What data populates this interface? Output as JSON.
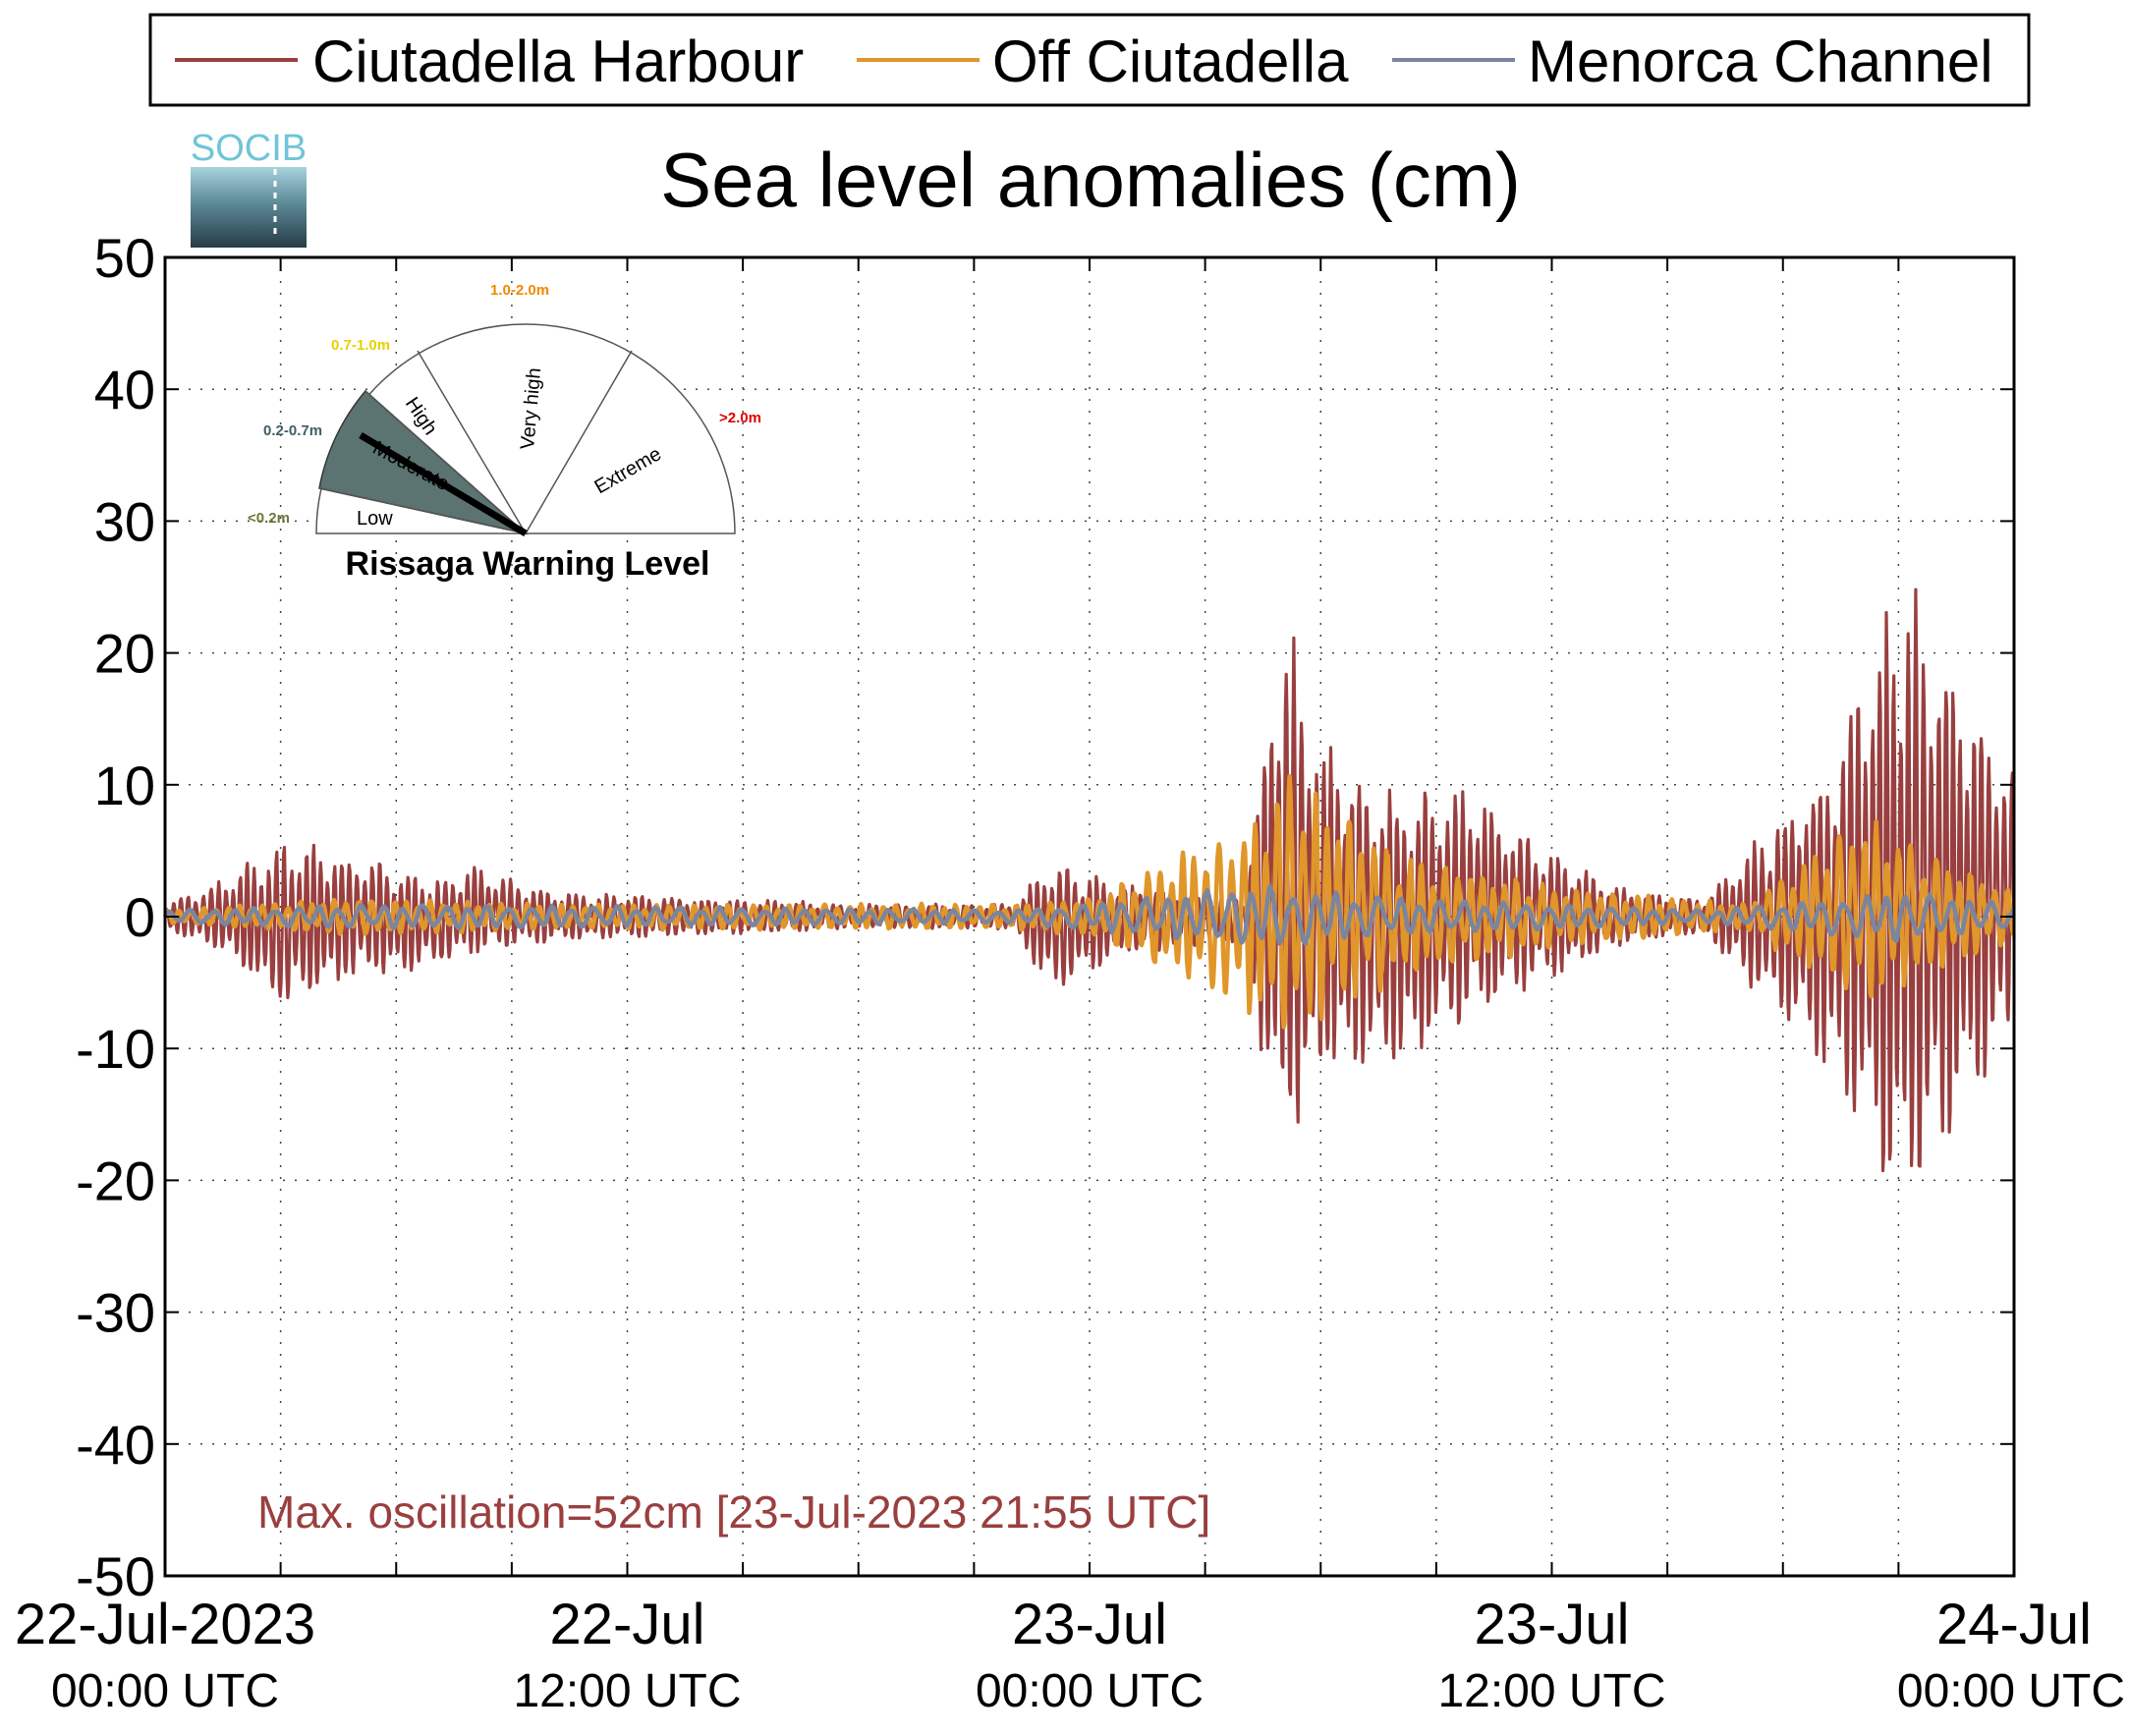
{
  "title": "Sea level anomalies (cm)",
  "logo": {
    "text": "SOCIB"
  },
  "legend": {
    "entries": [
      {
        "label": "Ciutadella Harbour",
        "color": "#9a3f3f"
      },
      {
        "label": "Off Ciutadella",
        "color": "#e0962a"
      },
      {
        "label": "Menorca Channel",
        "color": "#7a85a0"
      }
    ]
  },
  "gauge": {
    "title": "Rissaga Warning Level",
    "active_level": "Moderate",
    "active_color": "#5b7371",
    "levels": [
      {
        "name": "Low",
        "range": "<0.2m",
        "range_color": "#6b7a3a"
      },
      {
        "name": "Moderate",
        "range": "0.2-0.7m",
        "range_color": "#3f5f66"
      },
      {
        "name": "High",
        "range": "0.7-1.0m",
        "range_color": "#e6d200"
      },
      {
        "name": "Very high",
        "range": "1.0-2.0m",
        "range_color": "#f08a00"
      },
      {
        "name": "Extreme",
        "range": ">2.0m",
        "range_color": "#e00000"
      }
    ]
  },
  "annotation": {
    "text": "Max. oscillation=52cm [23-Jul-2023 21:55 UTC]",
    "color": "#9a3f3f"
  },
  "chart_data": {
    "type": "line",
    "ylim": [
      -50,
      50
    ],
    "xlim_hours": [
      0,
      48
    ],
    "y_ticks": [
      "50",
      "40",
      "30",
      "20",
      "10",
      "0",
      "-10",
      "-20",
      "-30",
      "-40",
      "-50"
    ],
    "y_tick_values": [
      50,
      40,
      30,
      20,
      10,
      0,
      -10,
      -20,
      -30,
      -40,
      -50
    ],
    "x_ticks": [
      {
        "hour": 0,
        "date": "22-Jul-2023",
        "time": "00:00 UTC"
      },
      {
        "hour": 12,
        "date": "22-Jul",
        "time": "12:00 UTC"
      },
      {
        "hour": 24,
        "date": "23-Jul",
        "time": "00:00 UTC"
      },
      {
        "hour": 36,
        "date": "23-Jul",
        "time": "12:00 UTC"
      },
      {
        "hour": 48,
        "date": "24-Jul",
        "time": "00:00 UTC"
      }
    ],
    "grid": true,
    "legend_position": "top",
    "series": [
      {
        "name": "Ciutadella Harbour",
        "color": "#9a3f3f",
        "envelope": [
          {
            "hour": 0,
            "max": 1,
            "min": -1
          },
          {
            "hour": 1.5,
            "max": 3,
            "min": -3
          },
          {
            "hour": 3,
            "max": 6,
            "min": -7.5
          },
          {
            "hour": 5,
            "max": 5,
            "min": -5
          },
          {
            "hour": 7,
            "max": 3,
            "min": -4
          },
          {
            "hour": 8,
            "max": 4,
            "min": -3
          },
          {
            "hour": 10,
            "max": 2,
            "min": -2
          },
          {
            "hour": 14,
            "max": 1.5,
            "min": -1.5
          },
          {
            "hour": 18,
            "max": 1,
            "min": -1
          },
          {
            "hour": 22,
            "max": 1,
            "min": -1
          },
          {
            "hour": 23,
            "max": 4.5,
            "min": -6
          },
          {
            "hour": 25,
            "max": 2.5,
            "min": -3
          },
          {
            "hour": 28,
            "max": 1.5,
            "min": -2
          },
          {
            "hour": 29,
            "max": 25,
            "min": -20.5
          },
          {
            "hour": 30,
            "max": 14,
            "min": -13
          },
          {
            "hour": 32,
            "max": 10,
            "min": -12
          },
          {
            "hour": 34,
            "max": 10,
            "min": -8
          },
          {
            "hour": 36,
            "max": 5,
            "min": -5
          },
          {
            "hour": 38,
            "max": 2,
            "min": -2
          },
          {
            "hour": 40,
            "max": 1.5,
            "min": -1.5
          },
          {
            "hour": 43,
            "max": 12,
            "min": -12
          },
          {
            "hour": 45,
            "max": 27.5,
            "min": -24.5
          },
          {
            "hour": 48,
            "max": 12,
            "min": -10
          }
        ]
      },
      {
        "name": "Off Ciutadella",
        "color": "#e0962a",
        "envelope": [
          {
            "hour": 0,
            "max": 0.5,
            "min": -0.5
          },
          {
            "hour": 5,
            "max": 1.5,
            "min": -1.5
          },
          {
            "hour": 10,
            "max": 1,
            "min": -1
          },
          {
            "hour": 22,
            "max": 1,
            "min": -1
          },
          {
            "hour": 24,
            "max": 1.5,
            "min": -1.5
          },
          {
            "hour": 28.5,
            "max": 8,
            "min": -8
          },
          {
            "hour": 29,
            "max": 12,
            "min": -10
          },
          {
            "hour": 32,
            "max": 5,
            "min": -5
          },
          {
            "hour": 36,
            "max": 2.5,
            "min": -2.5
          },
          {
            "hour": 41,
            "max": 1,
            "min": -1
          },
          {
            "hour": 44,
            "max": 8,
            "min": -7
          },
          {
            "hour": 48,
            "max": 2,
            "min": -2
          }
        ]
      },
      {
        "name": "Menorca Channel",
        "color": "#7a85a0",
        "envelope": [
          {
            "hour": 0,
            "max": 0.5,
            "min": -0.5
          },
          {
            "hour": 6,
            "max": 1,
            "min": -1
          },
          {
            "hour": 22,
            "max": 0.5,
            "min": -0.5
          },
          {
            "hour": 28.5,
            "max": 2.5,
            "min": -2.5
          },
          {
            "hour": 32,
            "max": 1.5,
            "min": -1.5
          },
          {
            "hour": 40,
            "max": 0.5,
            "min": -0.5
          },
          {
            "hour": 45,
            "max": 2,
            "min": -2
          },
          {
            "hour": 48,
            "max": 1,
            "min": -1
          }
        ]
      }
    ]
  }
}
